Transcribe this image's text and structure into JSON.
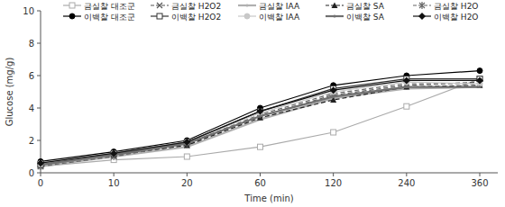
{
  "chart_data": {
    "type": "line",
    "x_label": "Time (min)",
    "y_label": "Glucose (mg/g)",
    "categories": [
      "0",
      "10",
      "20",
      "60",
      "120",
      "240",
      "360"
    ],
    "ylim": [
      0,
      10
    ],
    "yticks": [
      0,
      2,
      4,
      6,
      8,
      10
    ],
    "grid": false,
    "legend": "top",
    "series": [
      {
        "name": "금실찰 대조군",
        "color": "#aaaaaa",
        "marker": "square-open",
        "line_style": "solid",
        "values": [
          0.4,
          0.8,
          1.0,
          1.6,
          2.5,
          4.1,
          5.8
        ]
      },
      {
        "name": "금실찰 H2O2",
        "color": "#555555",
        "marker": "x",
        "line_style": "dashed",
        "values": [
          0.4,
          1.0,
          1.7,
          3.5,
          4.8,
          5.4,
          5.6
        ]
      },
      {
        "name": "금실찰 IAA",
        "color": "#b0b0b0",
        "marker": "none",
        "line_style": "solid",
        "values": [
          0.4,
          1.0,
          1.6,
          3.3,
          4.6,
          5.2,
          5.3
        ]
      },
      {
        "name": "금실찰 SA",
        "color": "#222222",
        "marker": "triangle",
        "line_style": "dashed",
        "values": [
          0.5,
          1.1,
          1.7,
          3.4,
          4.5,
          5.3,
          5.4
        ]
      },
      {
        "name": "금실찰 H2O",
        "color": "#666666",
        "marker": "asterisk",
        "line_style": "dashed",
        "values": [
          0.4,
          1.0,
          1.8,
          3.6,
          4.9,
          5.5,
          5.5
        ]
      },
      {
        "name": "이백찰 대조군",
        "color": "#000000",
        "marker": "circle",
        "line_style": "solid",
        "values": [
          0.7,
          1.3,
          2.0,
          4.0,
          5.4,
          6.0,
          6.3
        ]
      },
      {
        "name": "이백찰 H2O2",
        "color": "#333333",
        "marker": "square-open",
        "line_style": "solid",
        "values": [
          0.5,
          1.2,
          1.9,
          3.8,
          5.2,
          5.8,
          5.8
        ]
      },
      {
        "name": "이백찰 IAA",
        "color": "#c8c8c8",
        "marker": "circle",
        "line_style": "solid",
        "values": [
          0.6,
          1.2,
          1.9,
          3.7,
          5.0,
          5.6,
          5.5
        ]
      },
      {
        "name": "이백찰 SA",
        "color": "#707070",
        "marker": "none",
        "line_style": "solid",
        "values": [
          0.5,
          1.1,
          1.8,
          3.5,
          4.7,
          5.3,
          5.3
        ]
      },
      {
        "name": "이백찰 H2O",
        "color": "#111111",
        "marker": "diamond",
        "line_style": "solid",
        "values": [
          0.6,
          1.2,
          1.9,
          3.8,
          5.1,
          5.7,
          5.7
        ]
      }
    ]
  }
}
